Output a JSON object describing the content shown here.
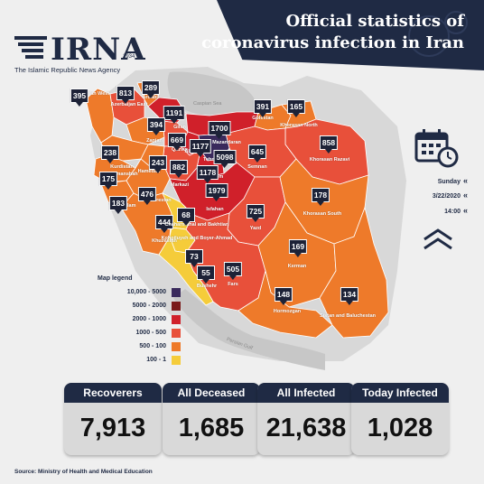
{
  "header": {
    "brand_name": "IRNA",
    "brand_since": "1934",
    "brand_tagline": "The Islamic Republic News Agency",
    "title_line1": "Official statistics of",
    "title_line2": "coronavirus infection in Iran"
  },
  "map": {
    "seas": [
      {
        "id": "caspian",
        "label": "Caspian Sea"
      },
      {
        "id": "persian-gulf",
        "label": "Persian Gulf"
      }
    ],
    "provinces": [
      {
        "id": "azerbaijan-west",
        "name": "Azerbaijan West",
        "count": "395",
        "level": "500 - 100"
      },
      {
        "id": "azerbaijan-east",
        "name": "Azerbaijan East",
        "count": "813",
        "level": "1000 - 500"
      },
      {
        "id": "ardabil",
        "name": "Ardabil",
        "count": "289",
        "level": "500 - 100"
      },
      {
        "id": "gilan",
        "name": "Gilan",
        "count": "1191",
        "level": "2000 - 1000"
      },
      {
        "id": "zanjan",
        "name": "Zanjan",
        "count": "394",
        "level": "500 - 100"
      },
      {
        "id": "qazvin",
        "name": "Qazvin",
        "count": "669",
        "level": "1000 - 500"
      },
      {
        "id": "alborz",
        "name": "Alborz",
        "count": "1177",
        "level": "2000 - 1000"
      },
      {
        "id": "tehran",
        "name": "Tehran",
        "count": "5098",
        "level": "10,000 - 5000"
      },
      {
        "id": "mazandaran",
        "name": "Mazandaran",
        "count": "1700",
        "level": "2000 - 1000"
      },
      {
        "id": "golestan",
        "name": "Golestan",
        "count": "391",
        "level": "500 - 100"
      },
      {
        "id": "khorasan-north",
        "name": "Khorasan North",
        "count": "165",
        "level": "500 - 100"
      },
      {
        "id": "khorasan-razavi",
        "name": "Khorasan Razavi",
        "count": "858",
        "level": "1000 - 500"
      },
      {
        "id": "semnan",
        "name": "Semnan",
        "count": "645",
        "level": "1000 - 500"
      },
      {
        "id": "qom",
        "name": "Qom",
        "count": "1178",
        "level": "2000 - 1000"
      },
      {
        "id": "markazi",
        "name": "Markazi",
        "count": "882",
        "level": "1000 - 500"
      },
      {
        "id": "hamedan",
        "name": "Hamedan",
        "count": "243",
        "level": "500 - 100"
      },
      {
        "id": "kurdistan",
        "name": "Kurdistan",
        "count": "238",
        "level": "500 - 100"
      },
      {
        "id": "kermanshah",
        "name": "Kermanshah",
        "count": "175",
        "level": "500 - 100"
      },
      {
        "id": "ilam",
        "name": "Ilam",
        "count": "183",
        "level": "500 - 100"
      },
      {
        "id": "lorestan",
        "name": "Lorestan",
        "count": "476",
        "level": "500 - 100"
      },
      {
        "id": "isfahan",
        "name": "Isfahan",
        "count": "1979",
        "level": "2000 - 1000"
      },
      {
        "id": "yazd",
        "name": "Yazd",
        "count": "725",
        "level": "1000 - 500"
      },
      {
        "id": "khorasan-south",
        "name": "Khorasan South",
        "count": "178",
        "level": "500 - 100"
      },
      {
        "id": "khuzestan",
        "name": "Khuzestan",
        "count": "444",
        "level": "500 - 100"
      },
      {
        "id": "chaharmahal",
        "name": "Chaharmahal and Bakhtiari",
        "count": "68",
        "level": "100 - 1"
      },
      {
        "id": "kohgiluyeh",
        "name": "Kohgiluyeh and Boyer-Ahmad",
        "count": "73",
        "level": "100 - 1"
      },
      {
        "id": "bushehr",
        "name": "Bushehr",
        "count": "55",
        "level": "100 - 1"
      },
      {
        "id": "fars",
        "name": "Fars",
        "count": "505",
        "level": "1000 - 500"
      },
      {
        "id": "kerman",
        "name": "Kerman",
        "count": "169",
        "level": "500 - 100"
      },
      {
        "id": "hormozgan",
        "name": "Hormozgan",
        "count": "148",
        "level": "500 - 100"
      },
      {
        "id": "sistan",
        "name": "Sistan and Baluchestan",
        "count": "134",
        "level": "500 - 100"
      }
    ]
  },
  "legend": {
    "title": "Map legend",
    "items": [
      {
        "label": "10,000 - 5000",
        "color": "#3a2a5c"
      },
      {
        "label": "5000 - 2000",
        "color": "#7a1a1a"
      },
      {
        "label": "2000 - 1000",
        "color": "#d0202a"
      },
      {
        "label": "1000 - 500",
        "color": "#e8503a"
      },
      {
        "label": "500 - 100",
        "color": "#ee7a2a"
      },
      {
        "label": "100 - 1",
        "color": "#f5cc3a"
      }
    ]
  },
  "dateinfo": {
    "day": "Sunday",
    "date": "3/22/2020",
    "time": "14:00"
  },
  "icons": {
    "calendar": "calendar-clock-icon",
    "scroll_up": "double-chevron-up-icon"
  },
  "stats": [
    {
      "id": "recoverers",
      "label": "Recoverers",
      "value": "7,913"
    },
    {
      "id": "all-deceased",
      "label": "All Deceased",
      "value": "1,685"
    },
    {
      "id": "all-infected",
      "label": "All Infected",
      "value": "21,638"
    },
    {
      "id": "today-infected",
      "label": "Today Infected",
      "value": "1,028"
    }
  ],
  "source": "Source: Ministry of Health and Medical Education"
}
